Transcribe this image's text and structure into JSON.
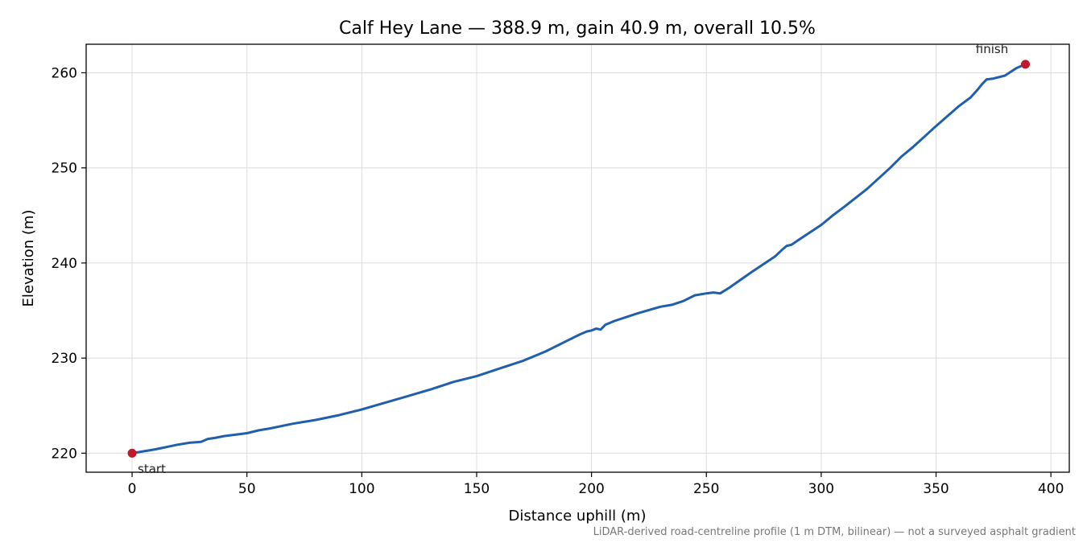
{
  "chart_data": {
    "type": "line",
    "title": "Calf Hey Lane — 388.9 m, gain 40.9 m, overall 10.5%",
    "xlabel": "Distance uphill (m)",
    "ylabel": "Elevation (m)",
    "xlim": [
      -20,
      408
    ],
    "ylim": [
      218,
      263
    ],
    "xticks": [
      0,
      50,
      100,
      150,
      200,
      250,
      300,
      350,
      400
    ],
    "yticks": [
      220,
      230,
      240,
      250,
      260
    ],
    "grid": true,
    "line_color": "#1f5fad",
    "marker_color": "#c0192b",
    "series": [
      {
        "x": [
          0,
          10,
          20,
          25,
          30,
          33,
          36,
          40,
          50,
          55,
          60,
          70,
          80,
          90,
          100,
          110,
          120,
          130,
          140,
          150,
          160,
          170,
          180,
          190,
          195,
          198,
          200,
          202,
          204,
          206,
          210,
          220,
          230,
          235,
          240,
          245,
          250,
          253,
          256,
          260,
          270,
          280,
          283,
          285,
          287,
          290,
          300,
          305,
          310,
          320,
          330,
          335,
          340,
          350,
          360,
          365,
          368,
          370,
          372,
          375,
          380,
          385,
          388.9
        ],
        "y": [
          220.0,
          220.4,
          220.9,
          221.1,
          221.2,
          221.5,
          221.6,
          221.8,
          222.1,
          222.4,
          222.6,
          223.1,
          223.5,
          224.0,
          224.6,
          225.3,
          226.0,
          226.7,
          227.5,
          228.1,
          228.9,
          229.7,
          230.7,
          231.9,
          232.5,
          232.8,
          232.9,
          233.1,
          233.0,
          233.5,
          233.9,
          234.7,
          235.4,
          235.6,
          236.0,
          236.6,
          236.8,
          236.9,
          236.8,
          237.4,
          239.1,
          240.7,
          241.4,
          241.8,
          241.9,
          242.4,
          244.0,
          245.0,
          245.9,
          247.8,
          250.0,
          251.2,
          252.2,
          254.4,
          256.5,
          257.4,
          258.2,
          258.8,
          259.3,
          259.4,
          259.7,
          260.5,
          260.9
        ]
      }
    ],
    "annotations": {
      "start": "start",
      "finish": "finish",
      "start_point": [
        0,
        220.0
      ],
      "finish_point": [
        388.9,
        260.9
      ]
    },
    "footnote": "LiDAR-derived road-centreline profile (1 m DTM, bilinear) — not a surveyed asphalt gradient"
  }
}
